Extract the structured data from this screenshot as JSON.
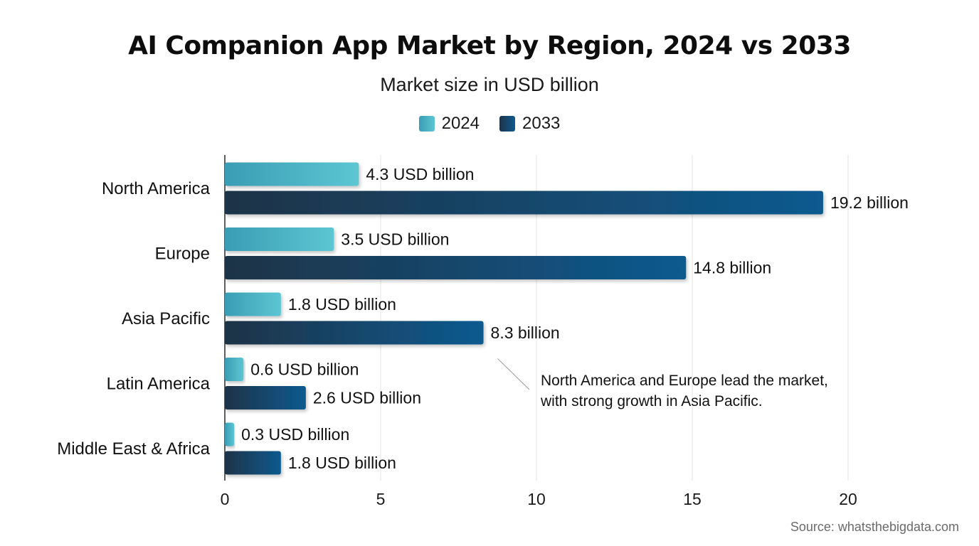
{
  "chart_data": {
    "type": "bar",
    "orientation": "horizontal",
    "title": "AI Companion App Market by Region, 2024 vs 2033",
    "subtitle": "Market size in USD billion",
    "categories": [
      "North America",
      "Europe",
      "Asia Pacific",
      "Latin America",
      "Middle East & Africa"
    ],
    "series": [
      {
        "name": "2024",
        "values": [
          4.3,
          3.5,
          1.8,
          0.6,
          0.3
        ],
        "labels": [
          "4.3 USD billion",
          "3.5 USD billion",
          "1.8 USD billion",
          "0.6 USD billion",
          "0.3 USD billion"
        ],
        "color_start": "#3a9db4",
        "color_end": "#5cc6d2"
      },
      {
        "name": "2033",
        "values": [
          19.2,
          14.8,
          8.3,
          2.6,
          1.8
        ],
        "labels": [
          "19.2 billion",
          "14.8 billion",
          "8.3 billion",
          "2.6 USD billion",
          "1.8 USD billion"
        ],
        "color_start": "#1f3347",
        "color_end": "#0d5a8f"
      }
    ],
    "xlim": [
      0,
      20
    ],
    "xticks": [
      0,
      5,
      10,
      15,
      20
    ],
    "xlabel": "",
    "ylabel": "",
    "grid": true,
    "legend_position": "top-center",
    "annotation": {
      "lines": [
        "North America and Europe lead the market,",
        "with strong growth in Asia Pacific."
      ],
      "points_to_category": "Asia Pacific",
      "points_to_series": "2033"
    }
  },
  "source": "Source: whatsthebigdata.com"
}
